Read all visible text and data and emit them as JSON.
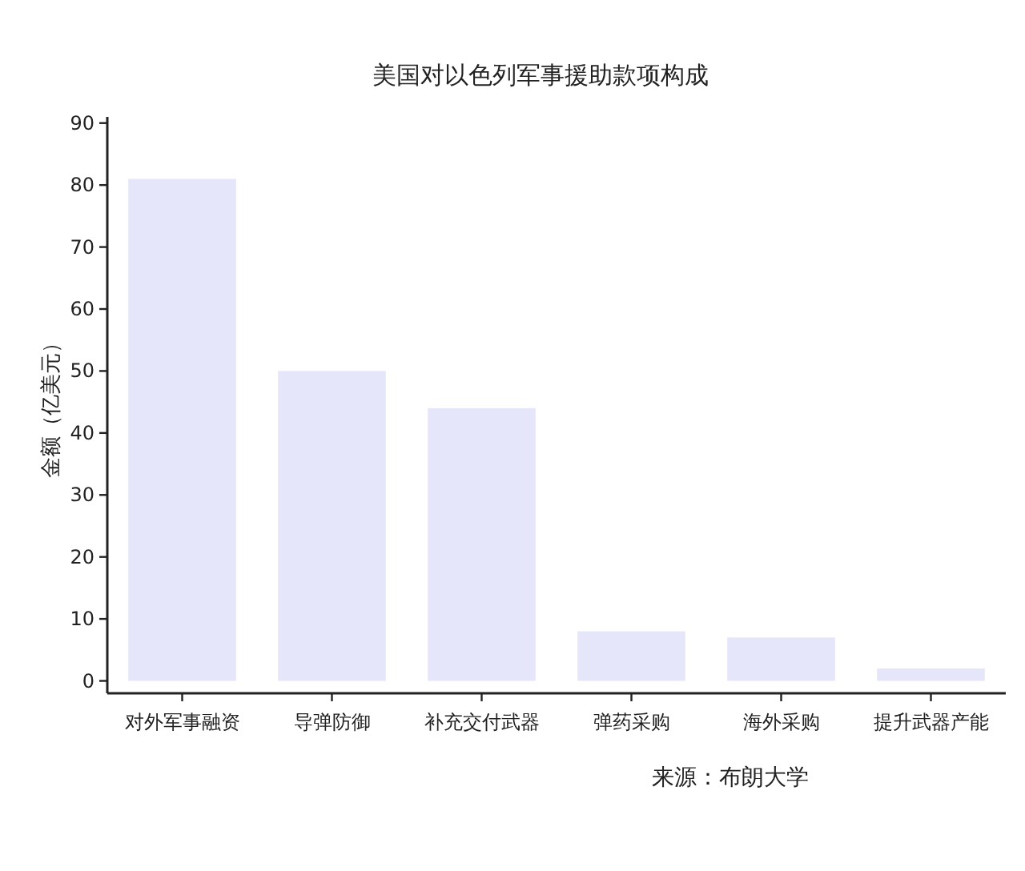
{
  "chart_data": {
    "type": "bar",
    "title": "美国对以色列军事援助款项构成",
    "ylabel": "金额（亿美元）",
    "categories": [
      "对外军事融资",
      "导弹防御",
      "补充交付武器",
      "弹药采购",
      "海外采购",
      "提升武器产能"
    ],
    "values": [
      81,
      50,
      44,
      8,
      7,
      2
    ],
    "color": "#e6e6fa",
    "ylim": [
      -2,
      91
    ],
    "yticks": [
      0,
      10,
      20,
      30,
      40,
      50,
      60,
      70,
      80,
      90
    ],
    "annotations": [
      "来源：布朗大学"
    ]
  }
}
